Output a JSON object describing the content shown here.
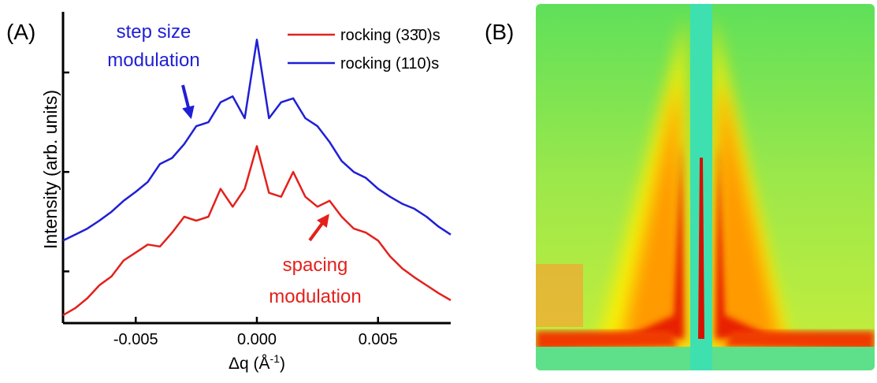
{
  "chart_data": {
    "type": "line",
    "panel_label": "(A)",
    "ylabel": "Intensity (arb. units)",
    "xlabel": "Δq (Å",
    "xlabel_sup": "-1",
    "xlabel_end": ")",
    "x": [
      -0.008,
      -0.0075,
      -0.007,
      -0.0065,
      -0.006,
      -0.0055,
      -0.005,
      -0.0045,
      -0.004,
      -0.0035,
      -0.003,
      -0.0025,
      -0.002,
      -0.0015,
      -0.001,
      -0.0005,
      0,
      0.0005,
      0.001,
      0.0015,
      0.002,
      0.0025,
      0.003,
      0.0035,
      0.004,
      0.0045,
      0.005,
      0.0055,
      0.006,
      0.0065,
      0.007,
      0.0075,
      0.008
    ],
    "series": [
      {
        "name": "rocking (33̄0)s",
        "color": "#e3211c",
        "values": [
          -0.44,
          -0.37,
          -0.27,
          -0.14,
          -0.05,
          0.11,
          0.19,
          0.27,
          0.25,
          0.39,
          0.55,
          0.51,
          0.55,
          0.83,
          0.65,
          0.83,
          1.26,
          0.79,
          0.75,
          1.0,
          0.75,
          0.65,
          0.71,
          0.55,
          0.43,
          0.39,
          0.31,
          0.15,
          0.03,
          -0.06,
          -0.14,
          -0.22,
          -0.29
        ]
      },
      {
        "name": "rocking (110)s",
        "color": "#1f1fd6",
        "values": [
          0.31,
          0.37,
          0.43,
          0.51,
          0.6,
          0.71,
          0.8,
          0.9,
          1.08,
          1.14,
          1.28,
          1.46,
          1.5,
          1.7,
          1.76,
          1.54,
          2.33,
          1.54,
          1.7,
          1.74,
          1.54,
          1.46,
          1.3,
          1.11,
          1.0,
          0.94,
          0.83,
          0.75,
          0.68,
          0.63,
          0.55,
          0.45,
          0.37
        ]
      }
    ],
    "xlim": [
      -0.008,
      0.008
    ],
    "xticks": [
      -0.005,
      {
        "value": 0,
        "label": "0.000"
      },
      0.005
    ],
    "ylim": [
      -0.52,
      2.61
    ],
    "yticks": [
      0,
      1,
      2
    ],
    "annotations": [
      {
        "lines": [
          "step size",
          "modulation"
        ],
        "color": "#1f1fd6"
      },
      {
        "lines": [
          "spacing",
          "modulation"
        ],
        "color": "#e3211c"
      }
    ],
    "legend": "upper right"
  },
  "panel_b": {
    "label": "(B)"
  }
}
